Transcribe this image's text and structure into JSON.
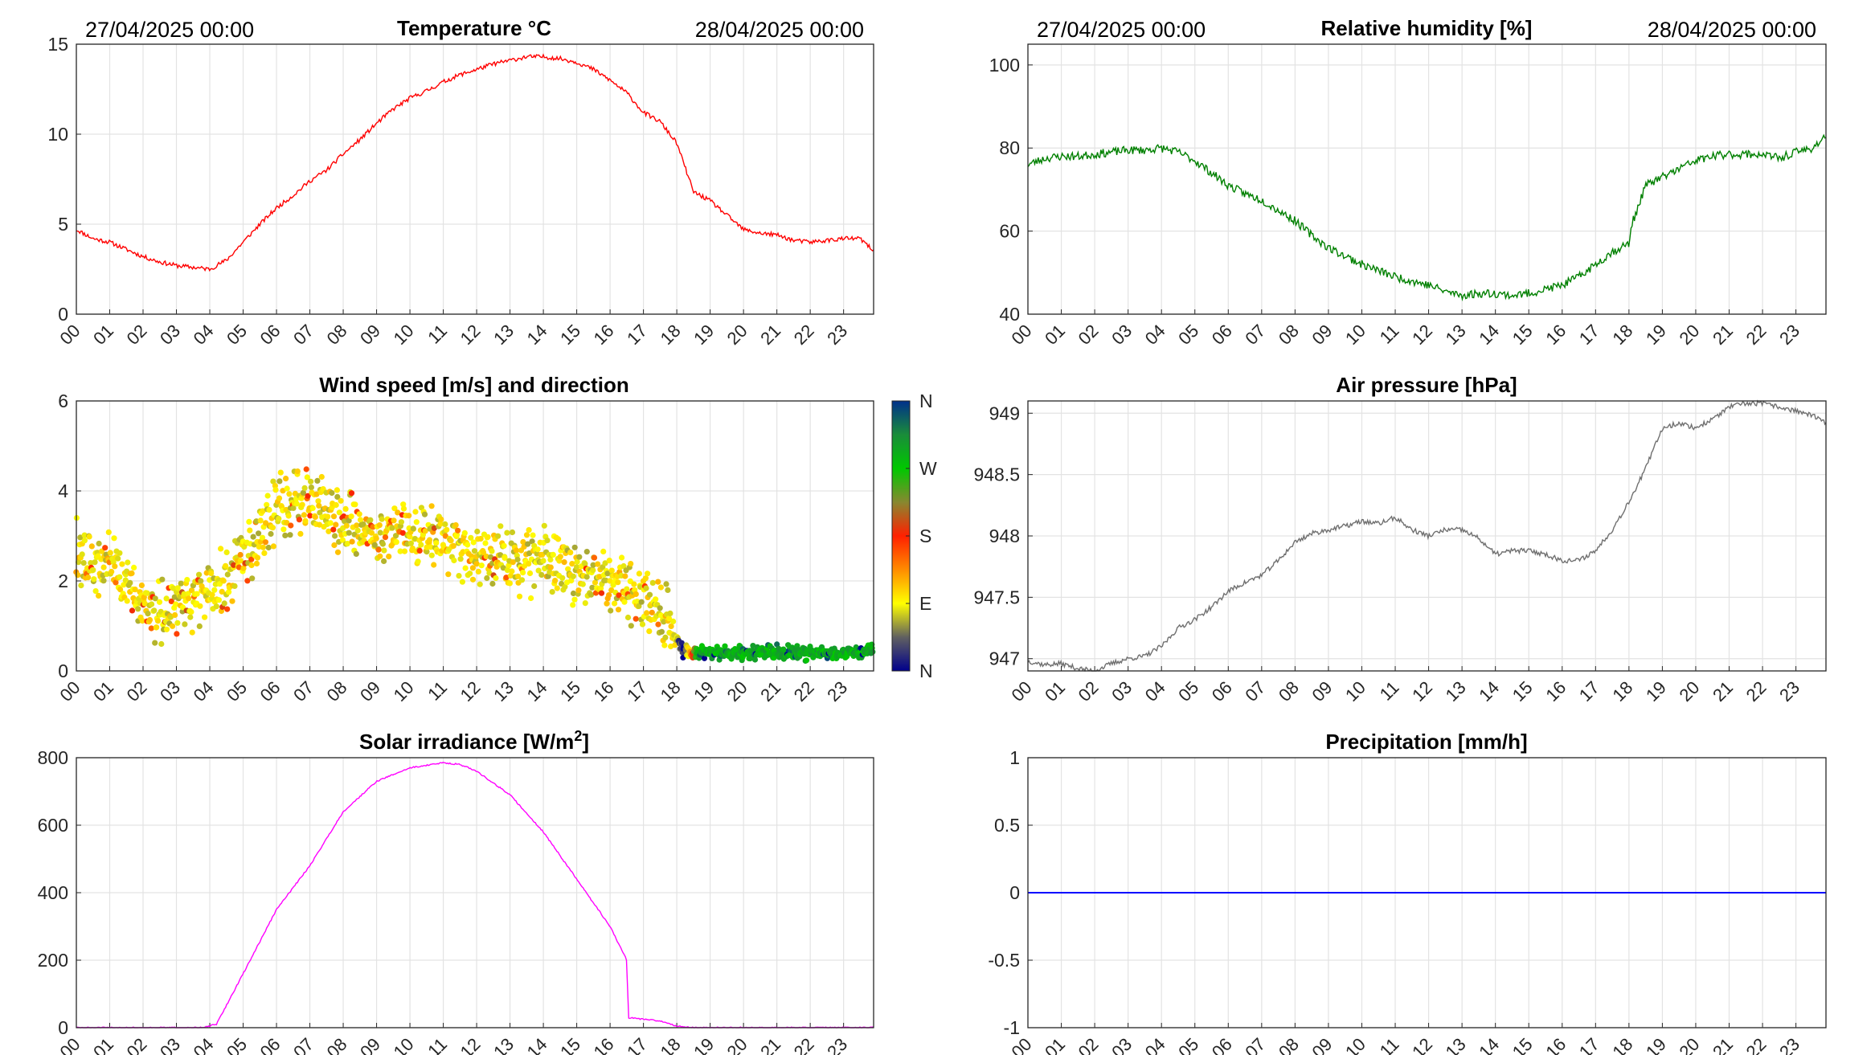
{
  "header": {
    "start_datetime": "27/04/2025 00:00",
    "end_datetime": "28/04/2025 00:00"
  },
  "hour_labels": [
    "00",
    "01",
    "02",
    "03",
    "04",
    "05",
    "06",
    "07",
    "08",
    "09",
    "10",
    "11",
    "12",
    "13",
    "14",
    "15",
    "16",
    "17",
    "18",
    "19",
    "20",
    "21",
    "22",
    "23"
  ],
  "chart_data": [
    {
      "id": "temperature",
      "type": "line",
      "title": "Temperature °C",
      "ylim": [
        0,
        15
      ],
      "yticks": [
        0,
        5,
        10,
        15
      ],
      "color": "#ff0000",
      "x": [
        0,
        0.5,
        1,
        1.5,
        2,
        2.5,
        3,
        3.5,
        4,
        4.5,
        5,
        5.5,
        6,
        6.5,
        7,
        7.5,
        8,
        8.5,
        9,
        9.5,
        10,
        10.5,
        11,
        11.5,
        12,
        12.5,
        13,
        13.5,
        14,
        14.5,
        15,
        15.5,
        16,
        16.5,
        17,
        17.5,
        18,
        18.5,
        19,
        19.5,
        20,
        20.5,
        21,
        21.5,
        22,
        22.5,
        23,
        23.5,
        23.9
      ],
      "y": [
        4.7,
        4.2,
        4.0,
        3.6,
        3.2,
        2.9,
        2.7,
        2.6,
        2.5,
        3.0,
        4.0,
        5.0,
        5.9,
        6.6,
        7.4,
        8.0,
        8.9,
        9.7,
        10.6,
        11.4,
        12.0,
        12.4,
        12.9,
        13.3,
        13.6,
        13.9,
        14.1,
        14.3,
        14.3,
        14.2,
        14.0,
        13.6,
        13.0,
        12.3,
        11.2,
        10.7,
        9.5,
        6.8,
        6.3,
        5.5,
        4.7,
        4.5,
        4.4,
        4.1,
        4.0,
        4.1,
        4.2,
        4.2,
        3.5
      ]
    },
    {
      "id": "humidity",
      "type": "line",
      "title": "Relative humidity [%]",
      "ylim": [
        40,
        105
      ],
      "yticks": [
        40,
        60,
        80,
        100
      ],
      "color": "#008000",
      "x": [
        0,
        0.5,
        1,
        1.5,
        2,
        2.5,
        3,
        3.5,
        4,
        4.5,
        5,
        5.5,
        6,
        6.5,
        7,
        7.5,
        8,
        8.5,
        9,
        9.5,
        10,
        10.5,
        11,
        11.5,
        12,
        12.5,
        13,
        13.5,
        14,
        14.5,
        15,
        15.5,
        16,
        16.5,
        17,
        17.5,
        18,
        18.1,
        18.5,
        19,
        19.5,
        20,
        20.5,
        21,
        21.5,
        22,
        22.5,
        23,
        23.5,
        23.9
      ],
      "y": [
        76,
        77.5,
        78,
        78,
        78.5,
        79,
        79.5,
        79.5,
        80,
        79,
        77,
        74,
        71,
        69,
        67.5,
        65,
        62.5,
        59,
        56,
        54,
        52,
        50.5,
        49,
        48,
        47,
        45.5,
        44.5,
        45,
        45,
        44.5,
        45,
        46,
        47,
        49,
        52,
        55,
        57,
        62,
        71,
        73,
        75,
        77,
        78,
        78.5,
        78.5,
        78.5,
        77.5,
        79,
        80,
        83
      ]
    },
    {
      "id": "wind",
      "type": "scatter",
      "title": "Wind speed [m/s] and direction",
      "ylim": [
        0,
        6
      ],
      "yticks": [
        0,
        2,
        4,
        6
      ],
      "colorbar_labels": [
        "N",
        "E",
        "S",
        "W",
        "N"
      ],
      "colorbar_stops": [
        "#00008b",
        "#606060",
        "#ffff00",
        "#ff8c00",
        "#ff2000",
        "#888830",
        "#00c800",
        "#1a8c3a",
        "#00308b"
      ],
      "mean_speed": {
        "x": [
          0,
          0.5,
          1,
          1.5,
          2,
          2.5,
          3,
          3.5,
          4,
          4.5,
          5,
          5.5,
          6,
          6.5,
          7,
          7.5,
          8,
          8.5,
          9,
          9.5,
          10,
          10.5,
          11,
          11.5,
          12,
          12.5,
          13,
          13.5,
          14,
          14.5,
          15,
          15.5,
          16,
          16.5,
          17,
          17.5,
          17.9,
          18.3,
          19,
          20,
          21,
          22,
          23,
          23.9
        ],
        "y": [
          2.6,
          2.3,
          2.4,
          2.0,
          1.4,
          1.2,
          1.3,
          1.6,
          1.7,
          2.1,
          2.5,
          3.0,
          3.6,
          3.7,
          3.8,
          3.6,
          3.3,
          3.2,
          3.1,
          3.1,
          3.0,
          2.9,
          2.9,
          2.7,
          2.6,
          2.5,
          2.4,
          2.4,
          2.5,
          2.4,
          2.2,
          2.1,
          2.0,
          1.9,
          1.6,
          1.4,
          0.7,
          0.4,
          0.4,
          0.4,
          0.4,
          0.4,
          0.4,
          0.5
        ]
      },
      "direction_base": {
        "x": [
          0,
          17.9,
          18.2,
          18.6,
          24
        ],
        "deg": [
          90,
          90,
          0,
          290,
          290
        ]
      }
    },
    {
      "id": "pressure",
      "type": "line",
      "title": "Air pressure [hPa]",
      "ylim": [
        946.9,
        949.1
      ],
      "yticks": [
        947,
        947.5,
        948,
        948.5,
        949
      ],
      "ytick_labels": [
        "947",
        "947.5",
        "948",
        "948.5",
        "949"
      ],
      "color": "#707070",
      "x": [
        0,
        0.5,
        1,
        1.5,
        2,
        2.5,
        3,
        3.5,
        4,
        4.5,
        5,
        5.5,
        6,
        6.5,
        7,
        7.5,
        8,
        8.5,
        9,
        9.5,
        10,
        10.5,
        11,
        11.5,
        12,
        12.5,
        13,
        13.5,
        14,
        14.5,
        15,
        15.5,
        16,
        16.5,
        17,
        17.5,
        18,
        18.5,
        19,
        19.5,
        20,
        20.5,
        21,
        21.5,
        22,
        22.5,
        23,
        23.5,
        23.9
      ],
      "y": [
        946.98,
        946.95,
        946.96,
        946.92,
        946.9,
        946.96,
        947.0,
        947.02,
        947.1,
        947.25,
        947.32,
        947.42,
        947.55,
        947.62,
        947.68,
        947.8,
        947.95,
        948.02,
        948.05,
        948.08,
        948.12,
        948.1,
        948.15,
        948.05,
        948.0,
        948.05,
        948.05,
        947.98,
        947.85,
        947.88,
        947.88,
        947.85,
        947.8,
        947.8,
        947.88,
        948.05,
        948.28,
        948.55,
        948.88,
        948.92,
        948.88,
        948.95,
        949.05,
        949.08,
        949.08,
        949.05,
        949.02,
        948.98,
        948.92
      ]
    },
    {
      "id": "solar",
      "type": "line",
      "title": "Solar irradiance [W/m²]",
      "ylim": [
        0,
        800
      ],
      "yticks": [
        0,
        200,
        400,
        600,
        800
      ],
      "color": "#ff00ff",
      "x": [
        0,
        3.8,
        4.2,
        5,
        6,
        7,
        8,
        9,
        10,
        11,
        11.5,
        12,
        13,
        14,
        15,
        16,
        16.5,
        16.55,
        17,
        17.5,
        18,
        18.5,
        24
      ],
      "y": [
        0,
        0,
        10,
        160,
        350,
        480,
        640,
        730,
        770,
        785,
        780,
        760,
        690,
        580,
        440,
        300,
        200,
        30,
        25,
        20,
        5,
        0,
        0
      ]
    },
    {
      "id": "precipitation",
      "type": "line",
      "title": "Precipitation [mm/h]",
      "ylim": [
        -1,
        1
      ],
      "yticks": [
        -1,
        -0.5,
        0,
        0.5,
        1
      ],
      "ytick_labels": [
        "-1",
        "-0.5",
        "0",
        "0.5",
        "1"
      ],
      "color": "#0000ff",
      "x": [
        0,
        23.9
      ],
      "y": [
        0,
        0
      ]
    }
  ]
}
